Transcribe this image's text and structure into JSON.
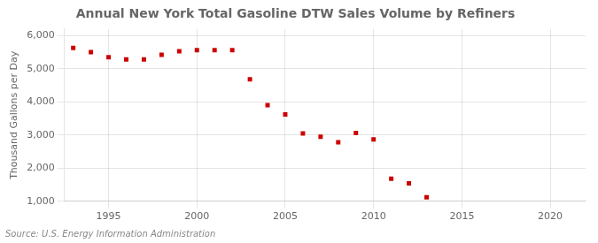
{
  "chart_data": {
    "type": "scatter",
    "title": "Annual New York Total Gasoline DTW Sales Volume by Refiners",
    "y_label": "Thousand Gallons per Day",
    "annotation": "Source: U.S. Energy Information Administration",
    "x": [
      1993,
      1994,
      1995,
      1996,
      1997,
      1998,
      1999,
      2000,
      2001,
      2002,
      2003,
      2004,
      2005,
      2006,
      2007,
      2008,
      2009,
      2010,
      2011,
      2012,
      2013
    ],
    "values": [
      5630,
      5500,
      5350,
      5280,
      5280,
      5420,
      5530,
      5560,
      5560,
      5560,
      4680,
      3900,
      3620,
      3050,
      2950,
      2780,
      3060,
      2870,
      1680,
      1540,
      1120
    ],
    "color": "#CC0000",
    "marker": "square",
    "xlim": [
      1992.5,
      2022
    ],
    "xticks": [
      1995,
      2000,
      2005,
      2010,
      2015,
      2020
    ],
    "ylim": [
      1000,
      6200
    ],
    "yticks": [
      {
        "value": 1000,
        "label": "1,000"
      },
      {
        "value": 2000,
        "label": "2,000"
      },
      {
        "value": 3000,
        "label": "3,000"
      },
      {
        "value": 4000,
        "label": "4,000"
      },
      {
        "value": 5000,
        "label": "5,000"
      },
      {
        "value": 6000,
        "label": "6,000"
      }
    ],
    "grid": true
  }
}
